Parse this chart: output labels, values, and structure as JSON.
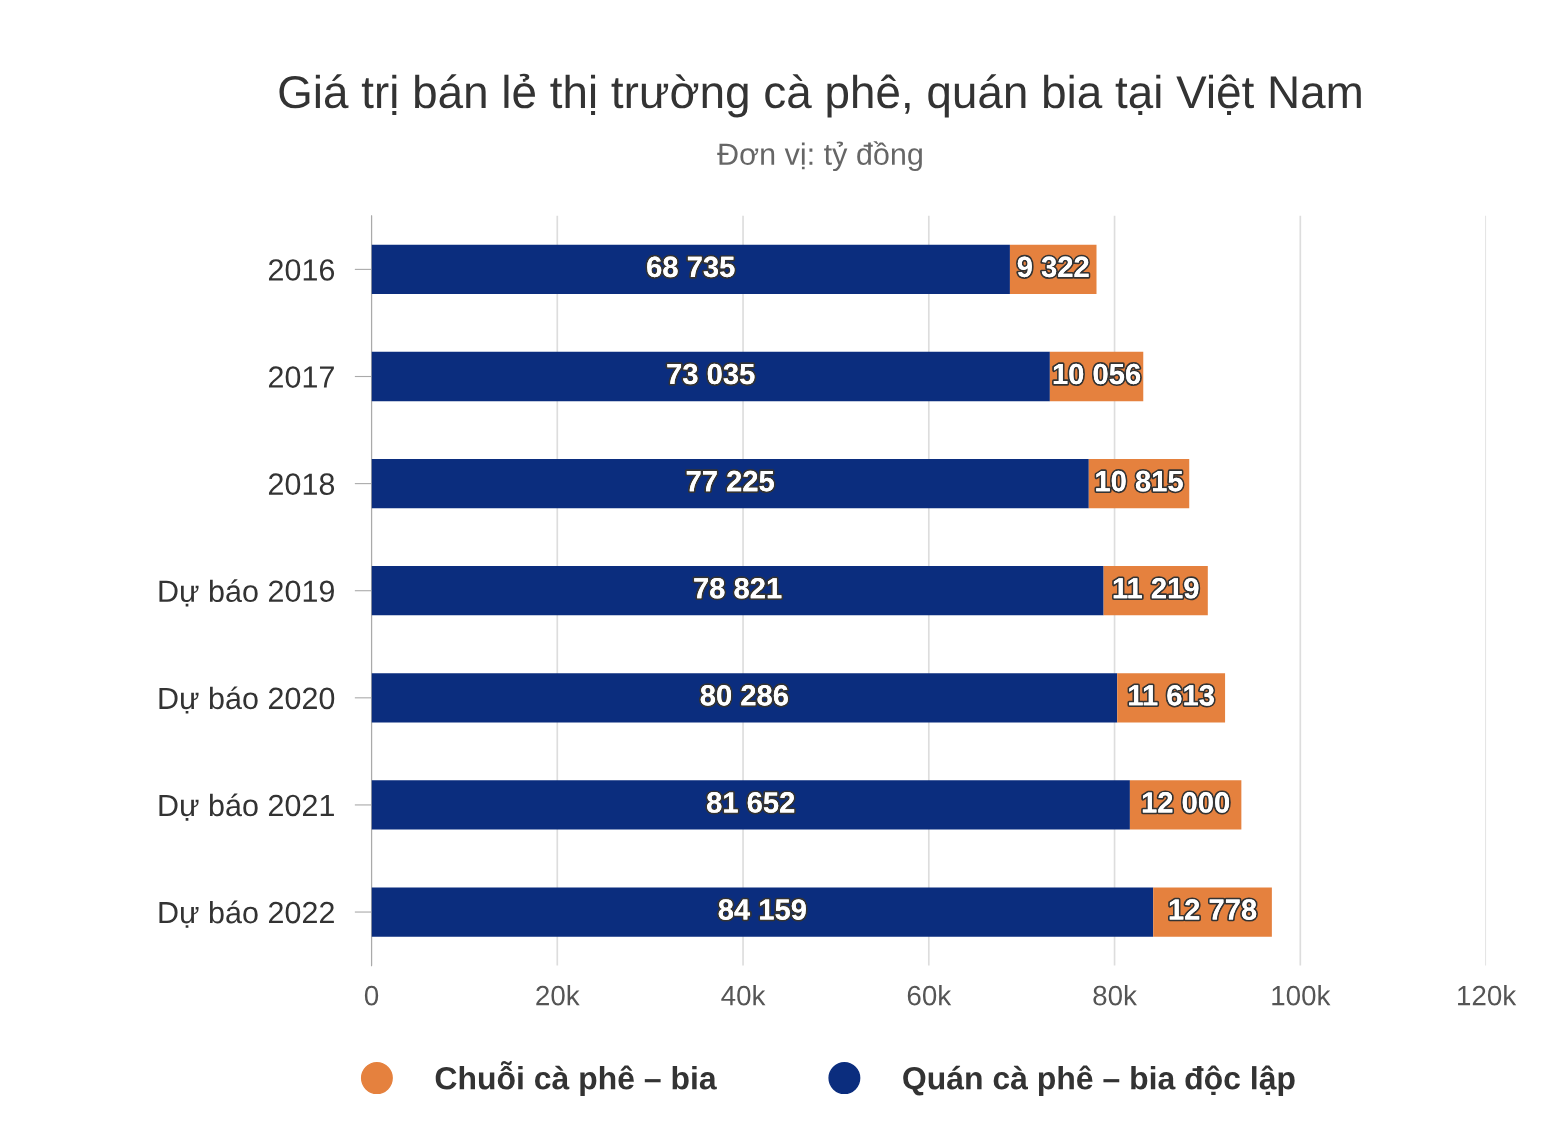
{
  "chart_data": {
    "type": "bar",
    "orientation": "horizontal",
    "stacked": true,
    "title": "Giá trị bán lẻ thị trường cà phê, quán bia tại Việt Nam",
    "subtitle": "Đơn vị: tỷ đồng",
    "categories": [
      "2016",
      "2017",
      "2018",
      "Dự báo 2019",
      "Dự báo 2020",
      "Dự báo 2021",
      "Dự báo 2022"
    ],
    "series": [
      {
        "name": "Quán cà phê – bia độc lập",
        "color": "#0b2d7e",
        "values": [
          68735,
          73035,
          77225,
          78821,
          80286,
          81652,
          84159
        ],
        "value_labels": [
          "68 735",
          "73 035",
          "77 225",
          "78 821",
          "80 286",
          "81 652",
          "84 159"
        ]
      },
      {
        "name": "Chuỗi cà phê – bia",
        "color": "#e5813e",
        "values": [
          9322,
          10056,
          10815,
          11219,
          11613,
          12000,
          12778
        ],
        "value_labels": [
          "9 322",
          "10 056",
          "10 815",
          "11 219",
          "11 613",
          "12 000",
          "12 778"
        ]
      }
    ],
    "xlim": [
      0,
      120000
    ],
    "xticks": [
      0,
      {
        "value": 20000,
        "label": "20k"
      },
      {
        "value": 40000,
        "label": "40k"
      },
      {
        "value": 60000,
        "label": "60k"
      },
      {
        "value": 80000,
        "label": "80k"
      },
      {
        "value": 100000,
        "label": "100k"
      },
      {
        "value": 120000,
        "label": "120k"
      }
    ],
    "grid": "x",
    "legend": "bottom"
  }
}
